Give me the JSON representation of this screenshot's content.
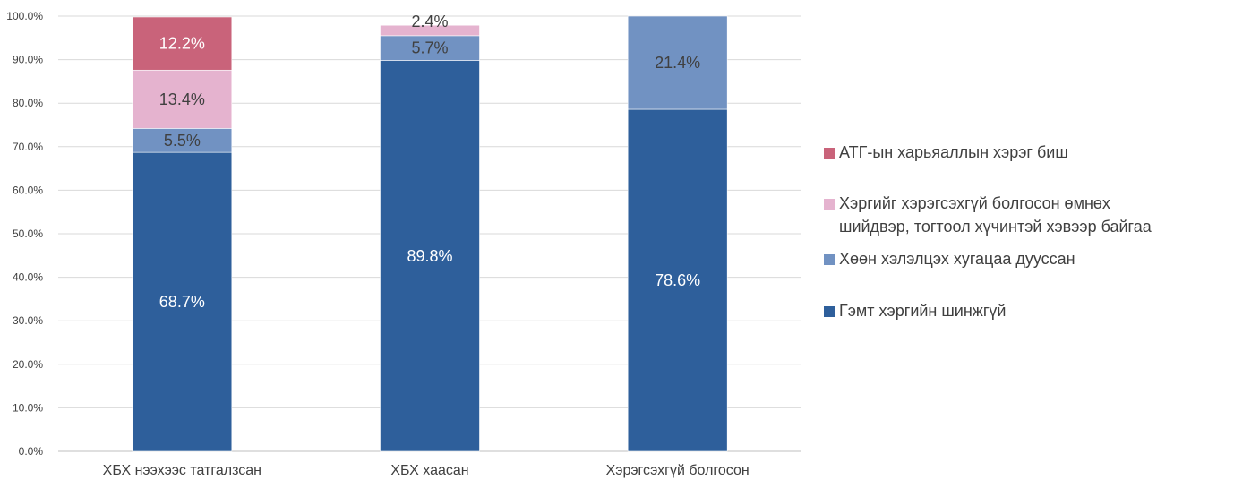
{
  "chart_data": {
    "type": "bar",
    "stacked": true,
    "categories": [
      "ХБХ нээхээс татгалзсан",
      "ХБХ хаасан",
      "Хэрэгсэхгүй болгосон"
    ],
    "series": [
      {
        "name": "Гэмт хэргийн шинжгүй",
        "color": "#2e5f9b",
        "label_color": "#ffffff",
        "values": [
          68.7,
          89.8,
          78.6
        ],
        "labels": [
          "68.7%",
          "89.8%",
          "78.6%"
        ]
      },
      {
        "name": "Хөөн хэлэлцэх хугацаа дууссан",
        "color": "#7192c2",
        "label_color": "#404040",
        "values": [
          5.5,
          5.7,
          21.4
        ],
        "labels": [
          "5.5%",
          "5.7%",
          "21.4%"
        ]
      },
      {
        "name": "Хэргийг хэрэгсэхгүй болгосон өмнөх шийдвэр, тогтоол хүчинтэй хэвээр байгаа",
        "color": "#e5b3cf",
        "label_color": "#404040",
        "values": [
          13.4,
          2.4,
          0
        ],
        "labels": [
          "13.4%",
          "2.4%",
          ""
        ]
      },
      {
        "name": "АТГ-ын харьяаллын хэрэг биш",
        "color": "#c9637a",
        "label_color": "#ffffff",
        "values": [
          12.2,
          0,
          0
        ],
        "labels": [
          "12.2%",
          "",
          ""
        ]
      }
    ],
    "legend": [
      {
        "lines": [
          "АТГ-ын харьяаллын хэрэг биш"
        ],
        "color": "#c9637a"
      },
      {
        "lines": [
          "Хэргийг хэрэгсэхгүй болгосон өмнөх",
          "шийдвэр, тогтоол хүчинтэй хэвээр байгаа"
        ],
        "color": "#e5b3cf"
      },
      {
        "lines": [
          "Хөөн хэлэлцэх хугацаа дууссан"
        ],
        "color": "#7192c2"
      },
      {
        "lines": [
          "Гэмт хэргийн шинжгүй"
        ],
        "color": "#2e5f9b"
      }
    ],
    "ylim": [
      0,
      100
    ],
    "yticks": [
      0,
      10,
      20,
      30,
      40,
      50,
      60,
      70,
      80,
      90,
      100
    ],
    "ytick_labels": [
      "0.0%",
      "10.0%",
      "20.0%",
      "30.0%",
      "40.0%",
      "50.0%",
      "60.0%",
      "70.0%",
      "80.0%",
      "90.0%",
      "100.0%"
    ],
    "grid": true,
    "legend_position": "right",
    "title": "",
    "xlabel": "",
    "ylabel": ""
  }
}
